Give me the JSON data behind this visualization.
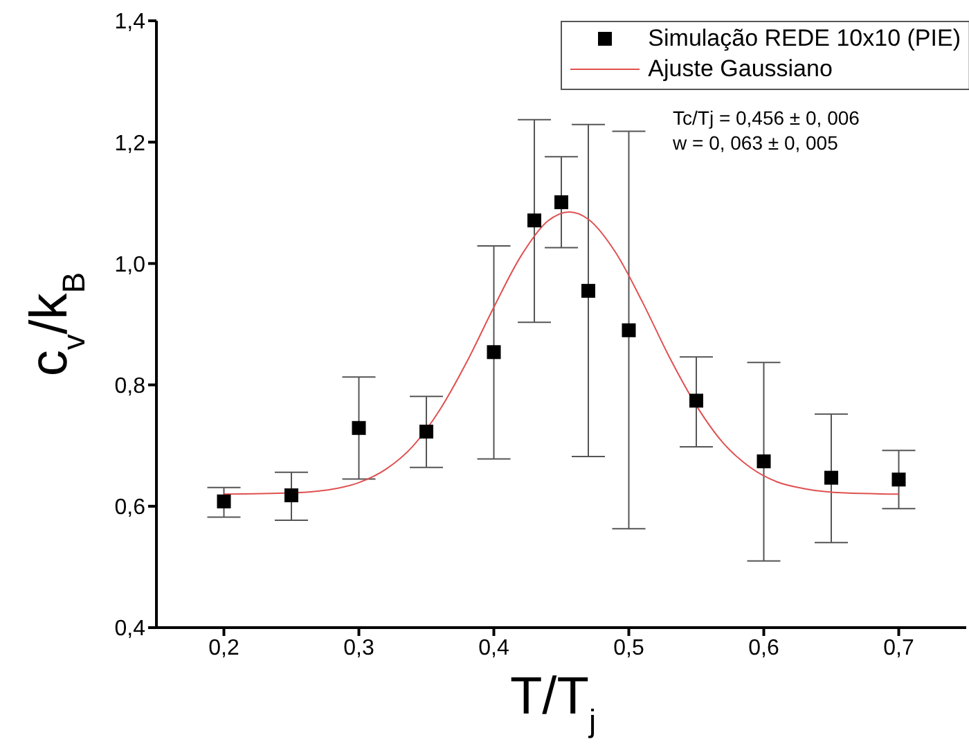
{
  "chart_data": {
    "type": "scatter",
    "xlabel": "T/T$_{j}$",
    "ylabel": "c$_{v}$/k$_{B}$",
    "xlim": [
      0.15,
      0.75
    ],
    "ylim": [
      0.4,
      1.4
    ],
    "xticks": [
      {
        "value": 0.2,
        "label": "0,2"
      },
      {
        "value": 0.3,
        "label": "0,3"
      },
      {
        "value": 0.4,
        "label": "0,4"
      },
      {
        "value": 0.5,
        "label": "0,5"
      },
      {
        "value": 0.6,
        "label": "0,6"
      },
      {
        "value": 0.7,
        "label": "0,7"
      }
    ],
    "yticks": [
      {
        "value": 0.4,
        "label": "0,4"
      },
      {
        "value": 0.6,
        "label": "0,6"
      },
      {
        "value": 0.8,
        "label": "0,8"
      },
      {
        "value": 1.0,
        "label": "1,0"
      },
      {
        "value": 1.2,
        "label": "1,2"
      },
      {
        "value": 1.4,
        "label": "1,4"
      }
    ],
    "grid": false,
    "legend": "top right",
    "annotations": [
      "Tc/Tj = 0,456 ± 0, 006",
      "w = 0, 063 ± 0, 005"
    ],
    "series": [
      {
        "name": "Simulação REDE 10x10 (PIE)",
        "color": "#000000",
        "marker": "square",
        "x": [
          0.2,
          0.25,
          0.3,
          0.35,
          0.4,
          0.43,
          0.45,
          0.47,
          0.5,
          0.55,
          0.6,
          0.65,
          0.7
        ],
        "values": [
          0.608,
          0.618,
          0.729,
          0.723,
          0.854,
          1.071,
          1.101,
          0.955,
          0.89,
          0.774,
          0.674,
          0.647,
          0.644
        ],
        "errors": [
          [
            0.582,
            0.631
          ],
          [
            0.577,
            0.656
          ],
          [
            0.645,
            0.813
          ],
          [
            0.664,
            0.781
          ],
          [
            0.678,
            1.029
          ],
          [
            0.903,
            1.237
          ],
          [
            1.026,
            1.176
          ],
          [
            0.682,
            1.229
          ],
          [
            0.563,
            1.218
          ],
          [
            0.698,
            0.846
          ],
          [
            0.51,
            0.837
          ],
          [
            0.54,
            0.752
          ],
          [
            0.596,
            0.692
          ]
        ]
      },
      {
        "name": "Ajuste Gaussiano",
        "type": "line",
        "color": "#e05050",
        "line_style": "solid",
        "x": [
          0.2,
          0.25,
          0.28,
          0.3,
          0.32,
          0.34,
          0.36,
          0.38,
          0.4,
          0.42,
          0.44,
          0.456,
          0.47,
          0.49,
          0.51,
          0.53,
          0.55,
          0.57,
          0.59,
          0.61,
          0.63,
          0.66,
          0.7
        ],
        "values": [
          0.62,
          0.622,
          0.628,
          0.639,
          0.661,
          0.699,
          0.759,
          0.838,
          0.928,
          1.012,
          1.07,
          1.085,
          1.073,
          1.019,
          0.937,
          0.846,
          0.766,
          0.704,
          0.664,
          0.64,
          0.629,
          0.622,
          0.62
        ]
      }
    ]
  }
}
